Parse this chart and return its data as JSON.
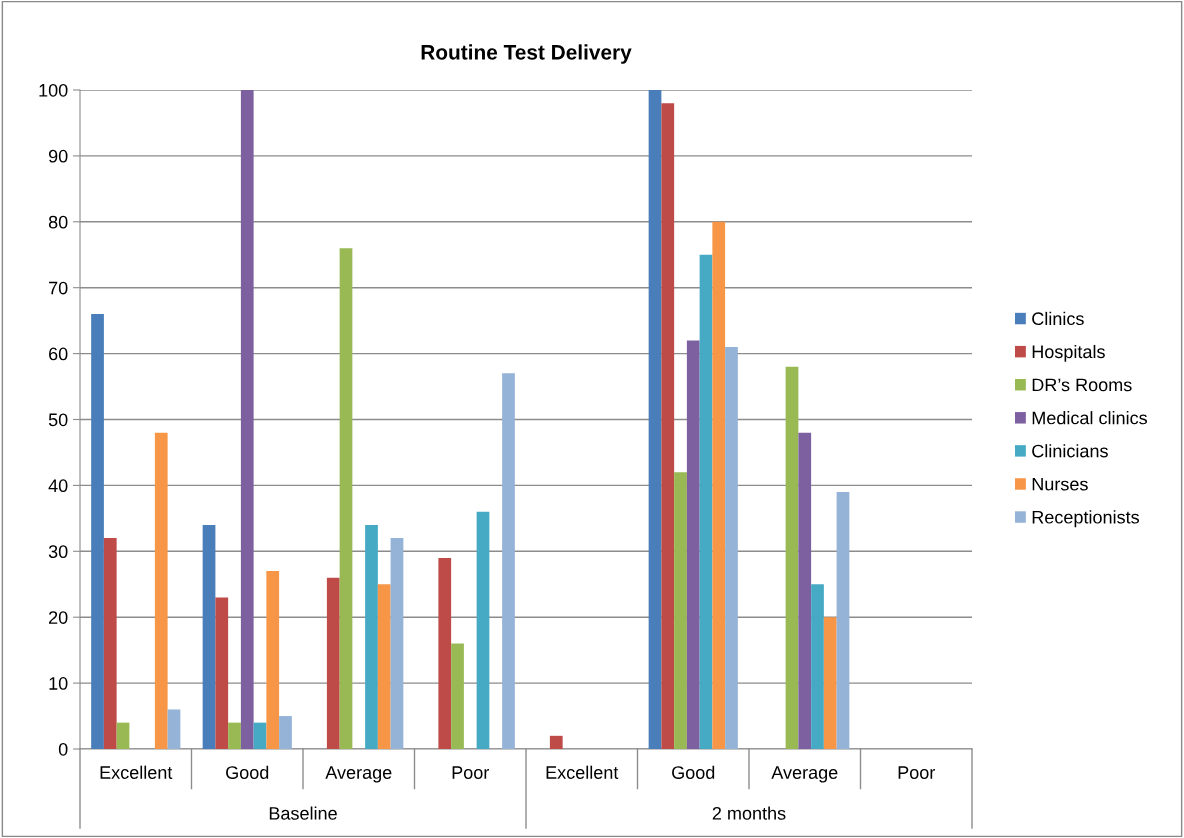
{
  "chart_data": {
    "type": "bar",
    "title": "Routine Test Delivery",
    "categories": [
      "Excellent",
      "Good",
      "Average",
      "Poor",
      "Excellent",
      "Good",
      "Average",
      "Poor"
    ],
    "annotations": [
      "Baseline",
      "2 months"
    ],
    "series": [
      {
        "name": "Clinics",
        "color": "#4a7ebb",
        "values": [
          66,
          34,
          0,
          0,
          0,
          100,
          0,
          0
        ]
      },
      {
        "name": "Hospitals",
        "color": "#be4b48",
        "values": [
          32,
          23,
          26,
          29,
          2,
          98,
          0,
          0
        ]
      },
      {
        "name": "DR’s Rooms",
        "color": "#98b954",
        "values": [
          4,
          4,
          76,
          16,
          0,
          42,
          58,
          0
        ]
      },
      {
        "name": "Medical clinics",
        "color": "#7d60a0",
        "values": [
          0,
          100,
          0,
          0,
          0,
          62,
          48,
          0
        ]
      },
      {
        "name": "Clinicians",
        "color": "#46aac5",
        "values": [
          0,
          4,
          34,
          36,
          0,
          75,
          25,
          0
        ]
      },
      {
        "name": "Nurses",
        "color": "#f79646",
        "values": [
          48,
          27,
          25,
          0,
          0,
          80,
          20,
          0
        ]
      },
      {
        "name": "Receptionists",
        "color": "#95b3d7",
        "values": [
          6,
          5,
          32,
          57,
          0,
          61,
          39,
          0
        ]
      }
    ],
    "ylim": [
      0,
      100
    ],
    "yticks": [
      0,
      10,
      20,
      30,
      40,
      50,
      60,
      70,
      80,
      90,
      100
    ],
    "grid": "y",
    "legend": "right"
  }
}
